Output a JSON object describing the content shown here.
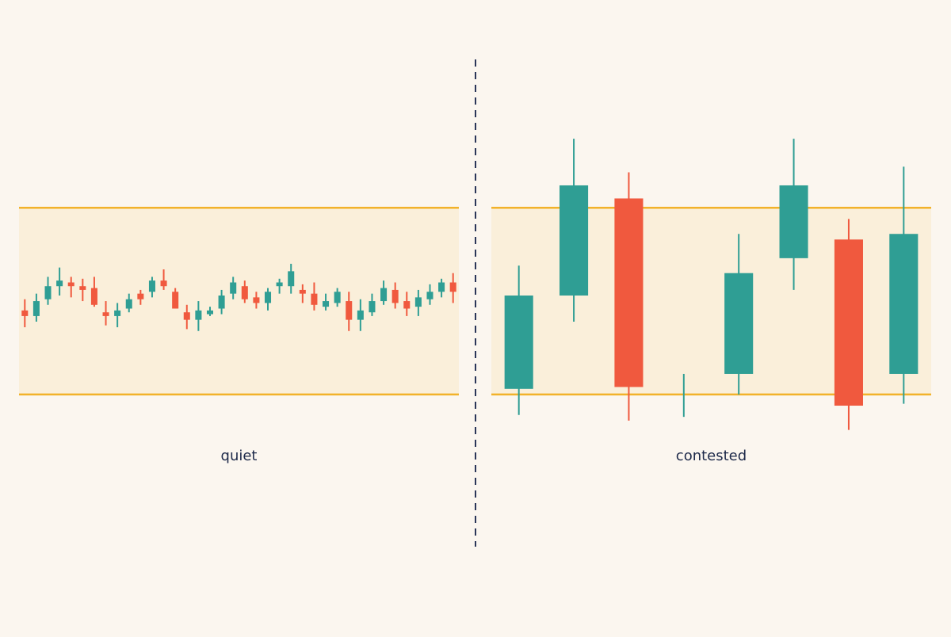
{
  "chart_data": [
    {
      "type": "candlestick",
      "title": "quiet",
      "categories": [
        null,
        null,
        null,
        null,
        null,
        null,
        null,
        null,
        null,
        null,
        null,
        null,
        null,
        null,
        null,
        null,
        null,
        null,
        null,
        null,
        null,
        null,
        null,
        null,
        null,
        null,
        null,
        null,
        null,
        null,
        null,
        null,
        null,
        null,
        null,
        null,
        null,
        null
      ],
      "open": [
        45,
        42,
        51,
        58,
        60,
        58,
        57,
        44,
        42,
        46,
        54,
        55,
        61,
        55,
        44,
        40,
        43,
        46,
        54,
        58,
        52,
        49,
        58,
        58,
        56,
        54,
        47,
        49,
        50,
        40,
        44,
        50,
        56,
        50,
        47,
        51,
        55,
        60
      ],
      "high": [
        51,
        54,
        63,
        68,
        63,
        62,
        63,
        50,
        49,
        54,
        56,
        63,
        67,
        57,
        48,
        50,
        47,
        56,
        63,
        61,
        55,
        57,
        62,
        70,
        59,
        60,
        54,
        57,
        55,
        51,
        54,
        61,
        60,
        55,
        56,
        59,
        62,
        65
      ],
      "low": [
        36,
        39,
        48,
        53,
        52,
        50,
        47,
        37,
        36,
        44,
        48,
        52,
        56,
        46,
        35,
        34,
        42,
        43,
        51,
        49,
        46,
        45,
        54,
        54,
        49,
        45,
        45,
        47,
        34,
        34,
        42,
        48,
        46,
        42,
        42,
        48,
        52,
        49
      ],
      "close": [
        42,
        50,
        58,
        61,
        58,
        56,
        48,
        42,
        45,
        51,
        51,
        61,
        58,
        46,
        40,
        45,
        45,
        53,
        60,
        51,
        49,
        55,
        60,
        66,
        54,
        48,
        50,
        55,
        40,
        45,
        50,
        57,
        49,
        46,
        52,
        55,
        60,
        55
      ],
      "up_color": "#2f9e94",
      "down_color": "#f0593e",
      "band": [
        0,
        100
      ],
      "band_color": "#f2b22a",
      "ylim": [
        -20,
        140
      ]
    },
    {
      "type": "candlestick",
      "title": "contested",
      "categories": [
        null,
        null,
        null,
        null,
        null,
        null,
        null,
        null
      ],
      "open": [
        3,
        53,
        105,
        0,
        11,
        73,
        83,
        11
      ],
      "high": [
        69,
        137,
        119,
        11,
        86,
        137,
        94,
        122
      ],
      "low": [
        -11,
        39,
        -14,
        -12,
        0,
        56,
        -19,
        -5
      ],
      "close": [
        53,
        112,
        4,
        0,
        65,
        112,
        -6,
        86
      ],
      "up_color": "#2f9e94",
      "down_color": "#f0593e",
      "band": [
        0,
        100
      ],
      "band_color": "#f2b22a",
      "ylim": [
        -20,
        140
      ]
    }
  ]
}
